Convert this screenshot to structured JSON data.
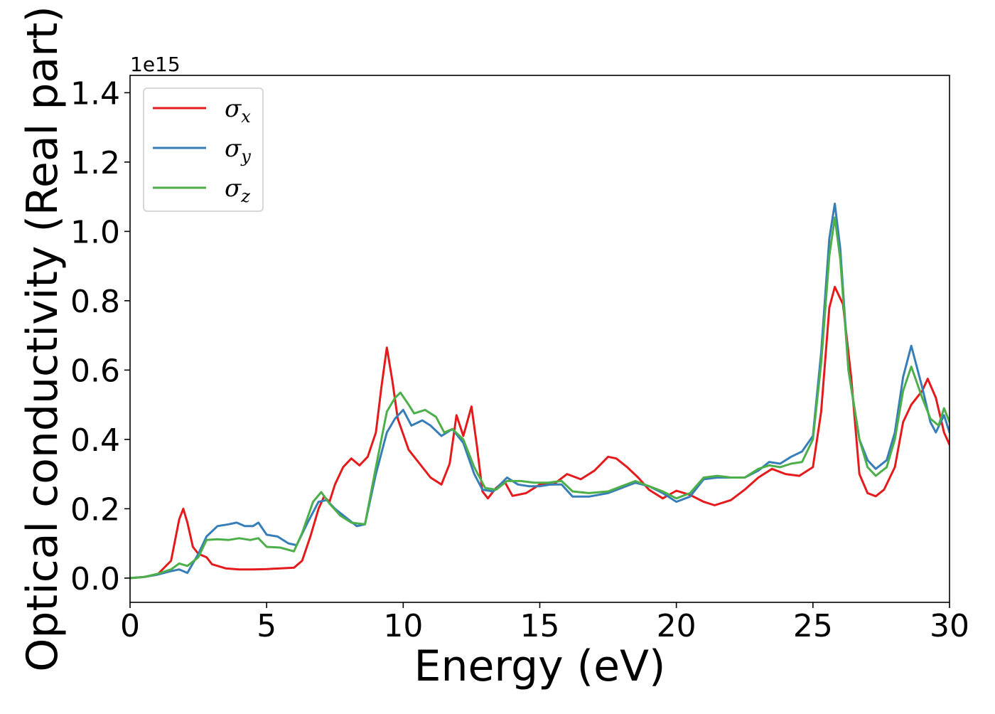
{
  "chart_data": {
    "type": "line",
    "xlabel": "Energy (eV)",
    "ylabel": "Optical conductivity (Real part)",
    "y_offset_label": "1e15",
    "xlim": [
      0,
      30
    ],
    "ylim": [
      -0.07,
      1.45
    ],
    "x_ticks": [
      "0",
      "5",
      "10",
      "15",
      "20",
      "25",
      "30"
    ],
    "y_ticks": [
      "0.0",
      "0.2",
      "0.4",
      "0.6",
      "0.8",
      "1.0",
      "1.2",
      "1.4"
    ],
    "grid": false,
    "legend_position": "upper-left",
    "series": [
      {
        "name": "σx",
        "symbol": "σ",
        "subscript": "x",
        "color": "#e41a1c",
        "points": [
          [
            0,
            0
          ],
          [
            0.5,
            0.003
          ],
          [
            1.0,
            0.01
          ],
          [
            1.5,
            0.05
          ],
          [
            1.8,
            0.17
          ],
          [
            1.95,
            0.2
          ],
          [
            2.1,
            0.16
          ],
          [
            2.3,
            0.09
          ],
          [
            2.5,
            0.07
          ],
          [
            2.8,
            0.06
          ],
          [
            3.0,
            0.04
          ],
          [
            3.5,
            0.028
          ],
          [
            4.0,
            0.025
          ],
          [
            4.5,
            0.025
          ],
          [
            5.0,
            0.026
          ],
          [
            5.5,
            0.028
          ],
          [
            6.0,
            0.03
          ],
          [
            6.3,
            0.05
          ],
          [
            6.6,
            0.12
          ],
          [
            6.9,
            0.2
          ],
          [
            7.1,
            0.235
          ],
          [
            7.3,
            0.22
          ],
          [
            7.5,
            0.27
          ],
          [
            7.8,
            0.32
          ],
          [
            8.1,
            0.345
          ],
          [
            8.4,
            0.325
          ],
          [
            8.7,
            0.35
          ],
          [
            9.0,
            0.42
          ],
          [
            9.2,
            0.55
          ],
          [
            9.4,
            0.665
          ],
          [
            9.6,
            0.57
          ],
          [
            9.8,
            0.46
          ],
          [
            10.2,
            0.37
          ],
          [
            10.6,
            0.33
          ],
          [
            11.0,
            0.29
          ],
          [
            11.4,
            0.27
          ],
          [
            11.7,
            0.33
          ],
          [
            11.95,
            0.47
          ],
          [
            12.2,
            0.41
          ],
          [
            12.5,
            0.495
          ],
          [
            12.7,
            0.38
          ],
          [
            12.9,
            0.25
          ],
          [
            13.1,
            0.23
          ],
          [
            13.4,
            0.26
          ],
          [
            13.7,
            0.28
          ],
          [
            14.0,
            0.237
          ],
          [
            14.5,
            0.245
          ],
          [
            15.0,
            0.27
          ],
          [
            15.5,
            0.27
          ],
          [
            16.0,
            0.3
          ],
          [
            16.5,
            0.285
          ],
          [
            17.0,
            0.31
          ],
          [
            17.5,
            0.35
          ],
          [
            17.8,
            0.345
          ],
          [
            18.2,
            0.32
          ],
          [
            18.6,
            0.29
          ],
          [
            19.0,
            0.255
          ],
          [
            19.5,
            0.23
          ],
          [
            20.0,
            0.252
          ],
          [
            20.5,
            0.24
          ],
          [
            21.0,
            0.22
          ],
          [
            21.4,
            0.21
          ],
          [
            22.0,
            0.225
          ],
          [
            22.5,
            0.255
          ],
          [
            23.0,
            0.29
          ],
          [
            23.5,
            0.315
          ],
          [
            24.0,
            0.3
          ],
          [
            24.5,
            0.295
          ],
          [
            25.0,
            0.32
          ],
          [
            25.3,
            0.48
          ],
          [
            25.6,
            0.78
          ],
          [
            25.8,
            0.84
          ],
          [
            26.1,
            0.79
          ],
          [
            26.4,
            0.58
          ],
          [
            26.7,
            0.3
          ],
          [
            27.0,
            0.245
          ],
          [
            27.3,
            0.236
          ],
          [
            27.6,
            0.255
          ],
          [
            28.0,
            0.32
          ],
          [
            28.3,
            0.45
          ],
          [
            28.6,
            0.5
          ],
          [
            29.0,
            0.54
          ],
          [
            29.2,
            0.575
          ],
          [
            29.5,
            0.52
          ],
          [
            29.8,
            0.42
          ],
          [
            30.0,
            0.385
          ]
        ]
      },
      {
        "name": "σy",
        "symbol": "σ",
        "subscript": "y",
        "color": "#377eb8",
        "points": [
          [
            0,
            0
          ],
          [
            0.5,
            0.003
          ],
          [
            1.0,
            0.01
          ],
          [
            1.5,
            0.02
          ],
          [
            1.8,
            0.025
          ],
          [
            2.1,
            0.015
          ],
          [
            2.5,
            0.07
          ],
          [
            2.8,
            0.12
          ],
          [
            3.2,
            0.15
          ],
          [
            3.6,
            0.155
          ],
          [
            3.9,
            0.16
          ],
          [
            4.2,
            0.15
          ],
          [
            4.5,
            0.15
          ],
          [
            4.7,
            0.16
          ],
          [
            5.0,
            0.125
          ],
          [
            5.4,
            0.12
          ],
          [
            5.8,
            0.1
          ],
          [
            6.1,
            0.095
          ],
          [
            6.5,
            0.16
          ],
          [
            6.9,
            0.22
          ],
          [
            7.2,
            0.225
          ],
          [
            7.5,
            0.2
          ],
          [
            7.9,
            0.175
          ],
          [
            8.3,
            0.15
          ],
          [
            8.6,
            0.155
          ],
          [
            9.0,
            0.3
          ],
          [
            9.4,
            0.42
          ],
          [
            9.7,
            0.46
          ],
          [
            10.0,
            0.485
          ],
          [
            10.3,
            0.44
          ],
          [
            10.7,
            0.455
          ],
          [
            11.0,
            0.44
          ],
          [
            11.4,
            0.41
          ],
          [
            11.8,
            0.43
          ],
          [
            12.2,
            0.39
          ],
          [
            12.6,
            0.3
          ],
          [
            12.9,
            0.255
          ],
          [
            13.3,
            0.25
          ],
          [
            13.8,
            0.29
          ],
          [
            14.2,
            0.27
          ],
          [
            14.6,
            0.265
          ],
          [
            15.0,
            0.265
          ],
          [
            15.4,
            0.27
          ],
          [
            15.8,
            0.27
          ],
          [
            16.2,
            0.235
          ],
          [
            16.8,
            0.235
          ],
          [
            17.5,
            0.245
          ],
          [
            18.0,
            0.26
          ],
          [
            18.5,
            0.275
          ],
          [
            19.0,
            0.265
          ],
          [
            19.5,
            0.245
          ],
          [
            20.0,
            0.22
          ],
          [
            20.5,
            0.235
          ],
          [
            21.0,
            0.285
          ],
          [
            21.5,
            0.29
          ],
          [
            22.0,
            0.29
          ],
          [
            22.5,
            0.29
          ],
          [
            23.0,
            0.31
          ],
          [
            23.4,
            0.335
          ],
          [
            23.8,
            0.33
          ],
          [
            24.2,
            0.35
          ],
          [
            24.6,
            0.365
          ],
          [
            25.0,
            0.41
          ],
          [
            25.3,
            0.65
          ],
          [
            25.6,
            0.98
          ],
          [
            25.8,
            1.08
          ],
          [
            26.0,
            0.95
          ],
          [
            26.3,
            0.6
          ],
          [
            26.7,
            0.4
          ],
          [
            27.0,
            0.34
          ],
          [
            27.3,
            0.315
          ],
          [
            27.7,
            0.34
          ],
          [
            28.0,
            0.42
          ],
          [
            28.3,
            0.58
          ],
          [
            28.6,
            0.67
          ],
          [
            29.0,
            0.55
          ],
          [
            29.3,
            0.45
          ],
          [
            29.5,
            0.42
          ],
          [
            29.8,
            0.47
          ],
          [
            30.0,
            0.42
          ]
        ]
      },
      {
        "name": "σz",
        "symbol": "σ",
        "subscript": "z",
        "color": "#4daf4a",
        "points": [
          [
            0,
            0
          ],
          [
            0.5,
            0.003
          ],
          [
            1.0,
            0.012
          ],
          [
            1.5,
            0.025
          ],
          [
            1.8,
            0.042
          ],
          [
            2.1,
            0.035
          ],
          [
            2.5,
            0.06
          ],
          [
            2.8,
            0.11
          ],
          [
            3.2,
            0.112
          ],
          [
            3.6,
            0.11
          ],
          [
            4.0,
            0.115
          ],
          [
            4.4,
            0.11
          ],
          [
            4.7,
            0.115
          ],
          [
            5.0,
            0.09
          ],
          [
            5.5,
            0.088
          ],
          [
            6.0,
            0.077
          ],
          [
            6.3,
            0.13
          ],
          [
            6.7,
            0.22
          ],
          [
            7.0,
            0.248
          ],
          [
            7.3,
            0.215
          ],
          [
            7.7,
            0.18
          ],
          [
            8.1,
            0.16
          ],
          [
            8.6,
            0.155
          ],
          [
            9.0,
            0.32
          ],
          [
            9.4,
            0.48
          ],
          [
            9.7,
            0.52
          ],
          [
            9.9,
            0.535
          ],
          [
            10.2,
            0.5
          ],
          [
            10.4,
            0.475
          ],
          [
            10.8,
            0.485
          ],
          [
            11.2,
            0.465
          ],
          [
            11.5,
            0.42
          ],
          [
            11.8,
            0.43
          ],
          [
            12.2,
            0.4
          ],
          [
            12.6,
            0.32
          ],
          [
            13.0,
            0.26
          ],
          [
            13.4,
            0.255
          ],
          [
            13.8,
            0.28
          ],
          [
            14.3,
            0.28
          ],
          [
            14.8,
            0.275
          ],
          [
            15.3,
            0.275
          ],
          [
            15.8,
            0.28
          ],
          [
            16.2,
            0.25
          ],
          [
            16.8,
            0.245
          ],
          [
            17.5,
            0.25
          ],
          [
            18.0,
            0.265
          ],
          [
            18.5,
            0.28
          ],
          [
            19.0,
            0.265
          ],
          [
            19.5,
            0.25
          ],
          [
            20.0,
            0.23
          ],
          [
            20.5,
            0.245
          ],
          [
            21.0,
            0.29
          ],
          [
            21.5,
            0.295
          ],
          [
            22.0,
            0.29
          ],
          [
            22.5,
            0.29
          ],
          [
            23.0,
            0.315
          ],
          [
            23.4,
            0.325
          ],
          [
            23.8,
            0.32
          ],
          [
            24.2,
            0.33
          ],
          [
            24.6,
            0.335
          ],
          [
            25.0,
            0.4
          ],
          [
            25.3,
            0.62
          ],
          [
            25.6,
            0.93
          ],
          [
            25.8,
            1.04
          ],
          [
            26.0,
            0.92
          ],
          [
            26.3,
            0.6
          ],
          [
            26.7,
            0.4
          ],
          [
            27.0,
            0.32
          ],
          [
            27.3,
            0.295
          ],
          [
            27.7,
            0.32
          ],
          [
            28.0,
            0.4
          ],
          [
            28.3,
            0.54
          ],
          [
            28.6,
            0.61
          ],
          [
            29.0,
            0.52
          ],
          [
            29.3,
            0.46
          ],
          [
            29.6,
            0.44
          ],
          [
            29.8,
            0.49
          ],
          [
            30.0,
            0.45
          ]
        ]
      }
    ]
  }
}
